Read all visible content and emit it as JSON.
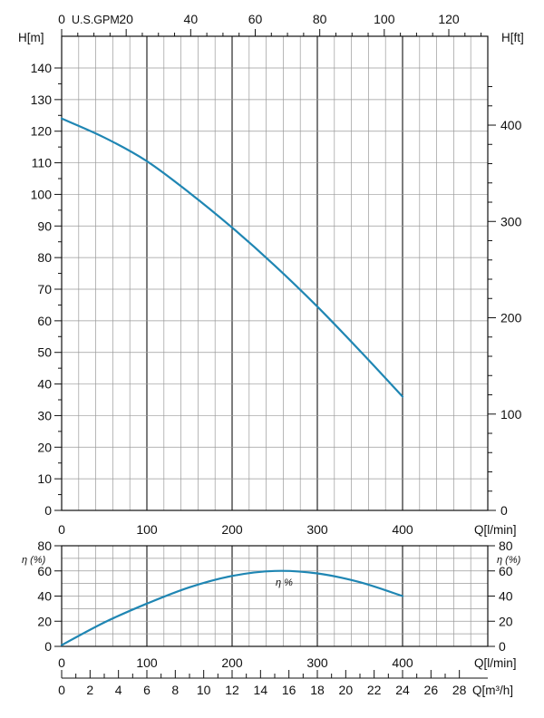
{
  "colors": {
    "curve": "#1f86b3",
    "grid": "#111111",
    "minor_grid": "#9a9a9a"
  },
  "chart_data": [
    {
      "type": "line",
      "name": "head",
      "xlabel": "Q[l/min]",
      "ylabel": "H[m]",
      "ylabel_right": "H[ft]",
      "top_axis_label": "U.S.GPM",
      "xlim": [
        0,
        500
      ],
      "ylim": [
        0,
        150
      ],
      "x_ticks": [
        "0",
        "100",
        "200",
        "300",
        "400"
      ],
      "y_ticks": [
        "0",
        "10",
        "20",
        "30",
        "40",
        "50",
        "60",
        "70",
        "80",
        "90",
        "100",
        "110",
        "120",
        "130",
        "140"
      ],
      "ft_ticks": [
        "0",
        "100",
        "200",
        "300",
        "400"
      ],
      "gpm_ticks": [
        "0",
        "20",
        "40",
        "60",
        "80",
        "100",
        "120"
      ],
      "grid": true,
      "series": [
        {
          "x": [
            0,
            50,
            100,
            150,
            200,
            250,
            300,
            350,
            400
          ],
          "y": [
            124,
            118,
            110.5,
            100.5,
            89.5,
            77.5,
            64.5,
            50.5,
            36
          ]
        }
      ]
    },
    {
      "type": "line",
      "name": "efficiency",
      "xlabel": "Q[l/min]",
      "ylabel": "η (%)",
      "ylabel_right": "η (%)",
      "curve_label": "η %",
      "bottom_axis_label": "Q[m³/h]",
      "xlim": [
        0,
        500
      ],
      "ylim": [
        0,
        80
      ],
      "x_ticks": [
        "0",
        "100",
        "200",
        "300",
        "400"
      ],
      "y_ticks": [
        "0",
        "20",
        "40",
        "60",
        "80"
      ],
      "m3h_ticks": [
        "0",
        "2",
        "4",
        "6",
        "8",
        "10",
        "12",
        "14",
        "16",
        "18",
        "20",
        "22",
        "24",
        "26",
        "28"
      ],
      "grid": true,
      "series": [
        {
          "x": [
            0,
            50,
            100,
            150,
            200,
            250,
            300,
            350,
            400
          ],
          "y": [
            1,
            19,
            34,
            47,
            56,
            60,
            58,
            51,
            40
          ]
        }
      ]
    }
  ]
}
